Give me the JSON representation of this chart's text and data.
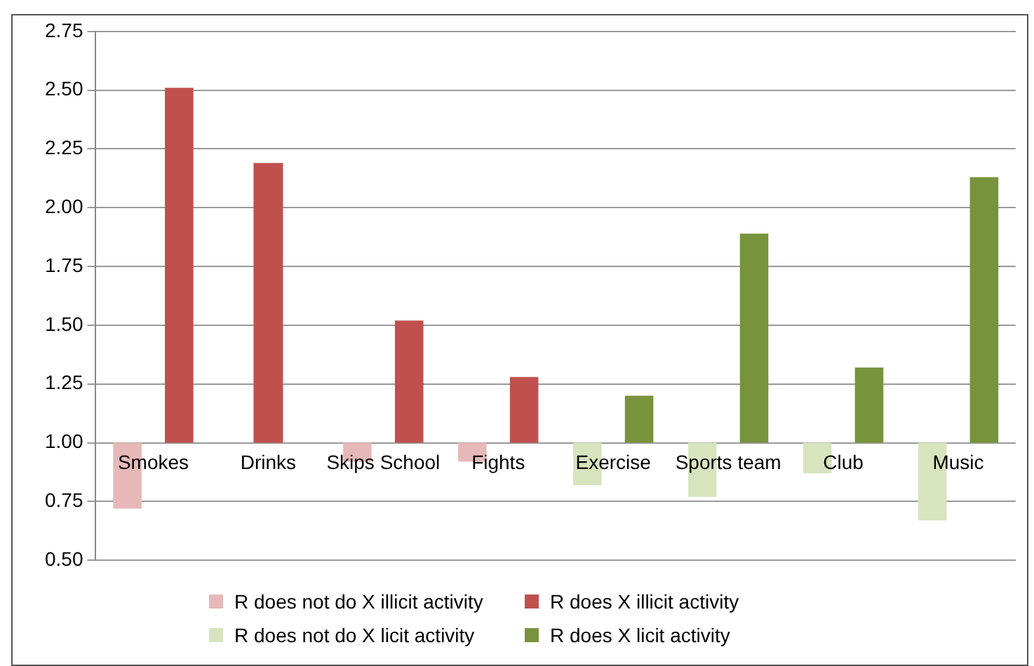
{
  "chart_data": {
    "type": "bar",
    "categories": [
      "Smokes",
      "Drinks",
      "Skips School",
      "Fights",
      "Exercise",
      "Sports team",
      "Club",
      "Music"
    ],
    "series": [
      {
        "name": "R does not do X illicit activity",
        "color": "#e6b9b8",
        "base": [
          1,
          null,
          1,
          1,
          null,
          null,
          null,
          null
        ],
        "values": [
          -0.28,
          null,
          -0.08,
          -0.08,
          null,
          null,
          null,
          null
        ]
      },
      {
        "name": "R does X illicit activity",
        "color": "#c0504d",
        "base": [
          1,
          1,
          1,
          1,
          null,
          null,
          null,
          null
        ],
        "values": [
          1.51,
          1.19,
          0.52,
          0.28,
          null,
          null,
          null,
          null
        ]
      },
      {
        "name": "R does not do X licit activity",
        "color": "#d7e4bd",
        "base": [
          null,
          null,
          null,
          null,
          1,
          1,
          1,
          1
        ],
        "values": [
          null,
          null,
          null,
          null,
          -0.18,
          -0.23,
          -0.13,
          -0.33
        ]
      },
      {
        "name": "R does X licit activity",
        "color": "#77933c",
        "base": [
          null,
          null,
          null,
          null,
          1,
          1,
          1,
          1
        ],
        "values": [
          null,
          null,
          null,
          null,
          0.2,
          0.89,
          0.32,
          1.13
        ]
      }
    ],
    "ylim": [
      0.5,
      2.75
    ],
    "yticks": [
      {
        "value": 0.5,
        "label": "0.50"
      },
      {
        "value": 0.75,
        "label": "0.75"
      },
      {
        "value": 1,
        "label": "1.00"
      },
      {
        "value": 1.25,
        "label": "1.25"
      },
      {
        "value": 1.5,
        "label": "1.50"
      },
      {
        "value": 1.75,
        "label": "1.75"
      },
      {
        "value": 2,
        "label": "2.00"
      },
      {
        "value": 2.25,
        "label": "2.25"
      },
      {
        "value": 2.5,
        "label": "2.50"
      },
      {
        "value": 2.75,
        "label": "2.75"
      }
    ],
    "grid": "y",
    "legend": "bottom"
  }
}
